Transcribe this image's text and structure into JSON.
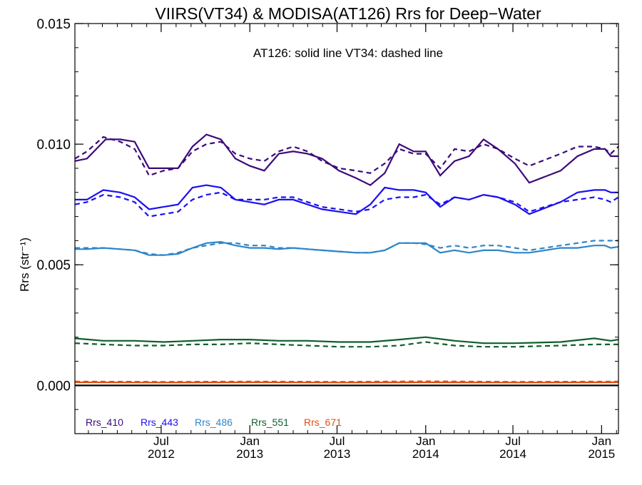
{
  "chart_data": {
    "type": "line",
    "title": "VIIRS(VT34) & MODISA(AT126)  Rrs for Deep−Water",
    "annotation": "AT126: solid line   VT34: dashed line",
    "ylabel": "Rrs (str⁻¹)",
    "xlabel": "",
    "ylim": [
      -0.002,
      0.015
    ],
    "xlim": [
      "2012-01-04",
      "2015-02-05"
    ],
    "yticks": [
      {
        "value": 0.0,
        "label": "0.000"
      },
      {
        "value": 0.005,
        "label": "0.005"
      },
      {
        "value": 0.01,
        "label": "0.010"
      },
      {
        "value": 0.015,
        "label": "0.015"
      }
    ],
    "xticks": [
      {
        "date": "2012-07-01",
        "line1": "Jul",
        "line2": "2012"
      },
      {
        "date": "2013-01-01",
        "line1": "Jan",
        "line2": "2013"
      },
      {
        "date": "2013-07-01",
        "line1": "Jul",
        "line2": "2013"
      },
      {
        "date": "2014-01-01",
        "line1": "Jan",
        "line2": "2014"
      },
      {
        "date": "2014-07-01",
        "line1": "Jul",
        "line2": "2014"
      },
      {
        "date": "2015-01-01",
        "line1": "Jan",
        "line2": "2015"
      }
    ],
    "grid": false,
    "legend_position": "bottom-left",
    "series": [
      {
        "name": "Rrs_410",
        "color": "#3c0a7a",
        "solid_x": [
          "2012-01-04",
          "2012-01-29",
          "2012-03-08",
          "2012-04-07",
          "2012-05-07",
          "2012-06-06",
          "2012-07-06",
          "2012-08-05",
          "2012-09-04",
          "2012-10-03",
          "2012-11-02",
          "2012-12-02",
          "2013-01-01",
          "2013-01-31",
          "2013-03-02",
          "2013-04-01",
          "2013-05-01",
          "2013-05-31",
          "2013-07-05",
          "2013-08-09",
          "2013-09-08",
          "2013-10-08",
          "2013-11-07",
          "2013-12-07",
          "2014-01-01",
          "2014-01-31",
          "2014-03-02",
          "2014-04-01",
          "2014-05-01",
          "2014-05-31",
          "2014-07-05",
          "2014-08-04",
          "2014-10-08",
          "2014-11-12",
          "2014-12-17",
          "2015-01-08",
          "2015-01-20",
          "2015-02-05"
        ],
        "solid_y": [
          0.0093,
          0.0094,
          0.0102,
          0.0102,
          0.0101,
          0.009,
          0.009,
          0.009,
          0.0099,
          0.0104,
          0.0102,
          0.0094,
          0.0091,
          0.0089,
          0.0096,
          0.0097,
          0.0096,
          0.0094,
          0.0089,
          0.0086,
          0.0083,
          0.0088,
          0.01,
          0.0097,
          0.0097,
          0.0087,
          0.0093,
          0.0095,
          0.0102,
          0.0098,
          0.0092,
          0.0084,
          0.0089,
          0.0095,
          0.0098,
          0.0098,
          0.0095,
          0.0095
        ],
        "dashed_x": [
          "2012-01-04",
          "2012-01-29",
          "2012-03-03",
          "2012-04-07",
          "2012-05-07",
          "2012-06-06",
          "2012-07-06",
          "2012-08-05",
          "2012-09-04",
          "2012-10-03",
          "2012-11-02",
          "2012-12-02",
          "2013-01-01",
          "2013-01-31",
          "2013-03-02",
          "2013-04-01",
          "2013-05-01",
          "2013-05-31",
          "2013-07-05",
          "2013-08-09",
          "2013-09-08",
          "2013-10-08",
          "2013-11-07",
          "2013-12-07",
          "2014-01-01",
          "2014-01-31",
          "2014-03-02",
          "2014-04-01",
          "2014-05-01",
          "2014-05-31",
          "2014-07-05",
          "2014-08-04",
          "2014-10-08",
          "2014-11-12",
          "2014-12-17",
          "2015-01-08",
          "2015-01-20",
          "2015-02-05"
        ],
        "dashed_y": [
          0.0094,
          0.0097,
          0.0103,
          0.0101,
          0.0098,
          0.0087,
          0.0089,
          0.009,
          0.0097,
          0.01,
          0.0101,
          0.0096,
          0.0094,
          0.0093,
          0.0097,
          0.0099,
          0.0097,
          0.0093,
          0.009,
          0.0089,
          0.0088,
          0.0092,
          0.0098,
          0.0096,
          0.0096,
          0.009,
          0.0098,
          0.0097,
          0.01,
          0.0098,
          0.0094,
          0.0091,
          0.0096,
          0.0099,
          0.0099,
          0.0098,
          0.0096,
          0.0099
        ]
      },
      {
        "name": "Rrs_443",
        "color": "#1a10f0",
        "solid_x": [
          "2012-01-04",
          "2012-01-29",
          "2012-03-03",
          "2012-04-07",
          "2012-05-07",
          "2012-06-06",
          "2012-07-06",
          "2012-08-05",
          "2012-09-04",
          "2012-10-03",
          "2012-11-02",
          "2012-12-02",
          "2013-01-01",
          "2013-01-31",
          "2013-03-02",
          "2013-04-01",
          "2013-05-01",
          "2013-05-31",
          "2013-07-05",
          "2013-08-09",
          "2013-09-08",
          "2013-10-08",
          "2013-11-07",
          "2013-12-07",
          "2014-01-01",
          "2014-01-31",
          "2014-03-02",
          "2014-04-01",
          "2014-05-01",
          "2014-05-31",
          "2014-07-05",
          "2014-08-04",
          "2014-10-08",
          "2014-11-12",
          "2014-12-17",
          "2015-01-08",
          "2015-01-20",
          "2015-02-05"
        ],
        "solid_y": [
          0.0077,
          0.0077,
          0.0081,
          0.008,
          0.0078,
          0.0073,
          0.0074,
          0.0075,
          0.0082,
          0.0083,
          0.0082,
          0.0077,
          0.0076,
          0.0075,
          0.0077,
          0.0077,
          0.0075,
          0.0073,
          0.0072,
          0.0071,
          0.0075,
          0.0082,
          0.0081,
          0.0081,
          0.008,
          0.0074,
          0.0078,
          0.0077,
          0.0079,
          0.0078,
          0.0075,
          0.0071,
          0.0076,
          0.008,
          0.0081,
          0.0081,
          0.008,
          0.008
        ],
        "dashed_x": [
          "2012-01-04",
          "2012-01-29",
          "2012-03-03",
          "2012-04-07",
          "2012-05-07",
          "2012-06-06",
          "2012-07-06",
          "2012-08-05",
          "2012-09-04",
          "2012-10-03",
          "2012-11-02",
          "2012-12-02",
          "2013-01-01",
          "2013-01-31",
          "2013-03-02",
          "2013-04-01",
          "2013-05-01",
          "2013-05-31",
          "2013-07-05",
          "2013-08-09",
          "2013-09-08",
          "2013-10-08",
          "2013-11-07",
          "2013-12-07",
          "2014-01-01",
          "2014-01-31",
          "2014-03-02",
          "2014-04-01",
          "2014-05-01",
          "2014-05-31",
          "2014-07-05",
          "2014-08-04",
          "2014-10-08",
          "2014-11-12",
          "2014-12-17",
          "2015-01-08",
          "2015-01-20",
          "2015-02-05"
        ],
        "dashed_y": [
          0.0075,
          0.0076,
          0.0079,
          0.0078,
          0.0076,
          0.007,
          0.0071,
          0.0072,
          0.0077,
          0.0079,
          0.008,
          0.0077,
          0.0077,
          0.0077,
          0.0078,
          0.0078,
          0.0076,
          0.0074,
          0.0073,
          0.0072,
          0.0073,
          0.0077,
          0.0078,
          0.0078,
          0.0079,
          0.0075,
          0.0078,
          0.0077,
          0.0079,
          0.0078,
          0.0076,
          0.0072,
          0.0076,
          0.0077,
          0.0078,
          0.0077,
          0.0076,
          0.0078
        ]
      },
      {
        "name": "Rrs_486",
        "color": "#2e86c8",
        "solid_x": [
          "2012-01-04",
          "2012-01-29",
          "2012-03-03",
          "2012-04-07",
          "2012-05-07",
          "2012-06-06",
          "2012-07-06",
          "2012-08-05",
          "2012-09-04",
          "2012-10-03",
          "2012-11-02",
          "2012-12-02",
          "2013-01-01",
          "2013-01-31",
          "2013-03-02",
          "2013-04-01",
          "2013-05-01",
          "2013-05-31",
          "2013-07-05",
          "2013-08-09",
          "2013-09-08",
          "2013-10-08",
          "2013-11-07",
          "2013-12-07",
          "2014-01-01",
          "2014-01-31",
          "2014-03-02",
          "2014-04-01",
          "2014-05-01",
          "2014-05-31",
          "2014-07-05",
          "2014-08-04",
          "2014-10-08",
          "2014-11-12",
          "2014-12-17",
          "2015-01-08",
          "2015-01-20",
          "2015-02-05"
        ],
        "solid_y": [
          0.00565,
          0.00565,
          0.0057,
          0.00565,
          0.0056,
          0.0054,
          0.0054,
          0.00545,
          0.0057,
          0.0059,
          0.00595,
          0.0058,
          0.0057,
          0.0057,
          0.00565,
          0.0057,
          0.00565,
          0.0056,
          0.00555,
          0.0055,
          0.0055,
          0.0056,
          0.0059,
          0.0059,
          0.0059,
          0.0055,
          0.0056,
          0.0055,
          0.0056,
          0.0056,
          0.0055,
          0.0055,
          0.0057,
          0.0057,
          0.0058,
          0.0058,
          0.0057,
          0.00575
        ],
        "dashed_x": [
          "2012-01-04",
          "2012-01-29",
          "2012-03-03",
          "2012-04-07",
          "2012-05-07",
          "2012-06-06",
          "2012-07-06",
          "2012-08-05",
          "2012-09-04",
          "2012-10-03",
          "2012-11-02",
          "2012-12-02",
          "2013-01-01",
          "2013-01-31",
          "2013-03-02",
          "2013-04-01",
          "2013-05-01",
          "2013-05-31",
          "2013-07-05",
          "2013-08-09",
          "2013-09-08",
          "2013-10-08",
          "2013-11-07",
          "2013-12-07",
          "2014-01-01",
          "2014-01-31",
          "2014-03-02",
          "2014-04-01",
          "2014-05-01",
          "2014-05-31",
          "2014-07-05",
          "2014-08-04",
          "2014-10-08",
          "2014-11-12",
          "2014-12-17",
          "2015-01-08",
          "2015-01-20",
          "2015-02-05"
        ],
        "dashed_y": [
          0.0057,
          0.0057,
          0.0057,
          0.00565,
          0.0056,
          0.00545,
          0.0054,
          0.0055,
          0.0057,
          0.0058,
          0.0059,
          0.0059,
          0.0058,
          0.0058,
          0.0057,
          0.0057,
          0.00565,
          0.0056,
          0.00555,
          0.0055,
          0.0055,
          0.0056,
          0.0059,
          0.0059,
          0.00585,
          0.0057,
          0.0058,
          0.0057,
          0.0058,
          0.0058,
          0.0057,
          0.0056,
          0.0058,
          0.0059,
          0.006,
          0.006,
          0.006,
          0.006
        ]
      },
      {
        "name": "Rrs_551",
        "color": "#0f5e2c",
        "solid_x": [
          "2012-01-04",
          "2012-03-03",
          "2012-05-07",
          "2012-07-06",
          "2012-09-04",
          "2012-11-02",
          "2013-01-01",
          "2013-03-02",
          "2013-05-01",
          "2013-07-05",
          "2013-09-08",
          "2013-11-07",
          "2014-01-01",
          "2014-03-02",
          "2014-05-01",
          "2014-07-05",
          "2014-10-08",
          "2014-12-17",
          "2015-01-20",
          "2015-02-05"
        ],
        "solid_y": [
          0.00195,
          0.00185,
          0.00185,
          0.0018,
          0.00185,
          0.0019,
          0.0019,
          0.00185,
          0.00185,
          0.0018,
          0.0018,
          0.0019,
          0.002,
          0.00185,
          0.00175,
          0.00175,
          0.0018,
          0.00195,
          0.00185,
          0.0019
        ],
        "dashed_x": [
          "2012-01-04",
          "2012-03-03",
          "2012-05-07",
          "2012-07-06",
          "2012-09-04",
          "2012-11-02",
          "2013-01-01",
          "2013-03-02",
          "2013-05-01",
          "2013-07-05",
          "2013-09-08",
          "2013-11-07",
          "2014-01-01",
          "2014-03-02",
          "2014-05-01",
          "2014-07-05",
          "2014-10-08",
          "2014-12-17",
          "2015-01-20",
          "2015-02-05"
        ],
        "dashed_y": [
          0.00175,
          0.0017,
          0.00165,
          0.00165,
          0.0017,
          0.0017,
          0.00175,
          0.0017,
          0.00165,
          0.0016,
          0.0016,
          0.00165,
          0.0018,
          0.00165,
          0.0016,
          0.0016,
          0.00165,
          0.0017,
          0.0017,
          0.0017
        ]
      },
      {
        "name": "Rrs_671",
        "color": "#e04e10",
        "solid_x": [
          "2012-01-04",
          "2012-07-06",
          "2013-01-01",
          "2013-07-05",
          "2014-01-01",
          "2014-07-05",
          "2015-02-05"
        ],
        "solid_y": [
          0.00013,
          0.00012,
          0.00013,
          0.00012,
          0.00013,
          0.00012,
          0.00013
        ],
        "dashed_x": [
          "2012-01-04",
          "2012-07-06",
          "2013-01-01",
          "2013-07-05",
          "2014-01-01",
          "2014-07-05",
          "2015-02-05"
        ],
        "dashed_y": [
          0.00016,
          0.00015,
          0.00016,
          0.00015,
          0.00017,
          0.00015,
          0.00016
        ]
      }
    ],
    "reference_line": {
      "value": 0.0,
      "color": "#000000"
    }
  }
}
